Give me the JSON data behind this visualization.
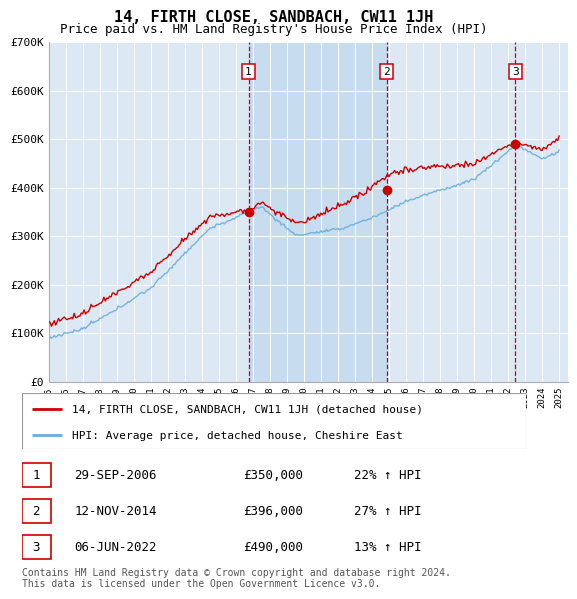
{
  "title": "14, FIRTH CLOSE, SANDBACH, CW11 1JH",
  "subtitle": "Price paid vs. HM Land Registry's House Price Index (HPI)",
  "ylim": [
    0,
    700000
  ],
  "yticks": [
    0,
    100000,
    200000,
    300000,
    400000,
    500000,
    600000,
    700000
  ],
  "ytick_labels": [
    "£0",
    "£100K",
    "£200K",
    "£300K",
    "£400K",
    "£500K",
    "£600K",
    "£700K"
  ],
  "background_color": "#ffffff",
  "plot_bg_color": "#dce9f5",
  "shade_color": "#c8dcf0",
  "grid_color": "#ffffff",
  "sale_color": "#cc0000",
  "hpi_color": "#6baed6",
  "sale_label": "14, FIRTH CLOSE, SANDBACH, CW11 1JH (detached house)",
  "hpi_label": "HPI: Average price, detached house, Cheshire East",
  "transactions": [
    {
      "num": 1,
      "date": "29-SEP-2006",
      "price": 350000,
      "pct": "22%",
      "dir": "↑"
    },
    {
      "num": 2,
      "date": "12-NOV-2014",
      "price": 396000,
      "pct": "27%",
      "dir": "↑"
    },
    {
      "num": 3,
      "date": "06-JUN-2022",
      "price": 490000,
      "pct": "13%",
      "dir": "↑"
    }
  ],
  "vline_x": [
    2006.75,
    2014.86,
    2022.43
  ],
  "vline_color": "#cc0000",
  "footnote": "Contains HM Land Registry data © Crown copyright and database right 2024.\nThis data is licensed under the Open Government Licence v3.0.",
  "title_fontsize": 11,
  "subtitle_fontsize": 9,
  "tick_fontsize": 7.5,
  "legend_fontsize": 8.5,
  "table_fontsize": 9,
  "footnote_fontsize": 7
}
